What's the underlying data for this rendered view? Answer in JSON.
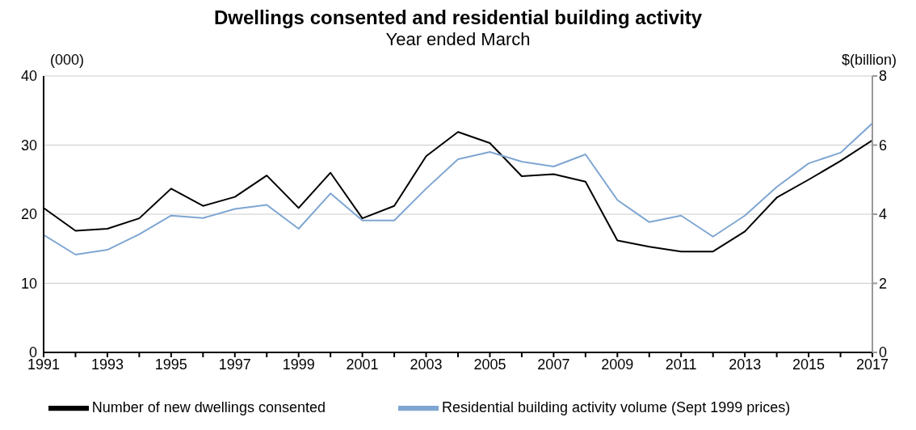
{
  "chart_data": {
    "type": "line",
    "title": "Dwellings consented and residential building activity",
    "subtitle": "Year ended March",
    "ylabel": "(000)",
    "y2label": "$(billion)",
    "x": [
      1991,
      1992,
      1993,
      1994,
      1995,
      1996,
      1997,
      1998,
      1999,
      2000,
      2001,
      2002,
      2003,
      2004,
      2005,
      2006,
      2007,
      2008,
      2009,
      2010,
      2011,
      2012,
      2013,
      2014,
      2015,
      2016,
      2017
    ],
    "series": [
      {
        "name": "Number of new dwellings consented",
        "color": "#000000",
        "values": [
          20.9,
          17.6,
          17.9,
          19.4,
          23.7,
          21.2,
          22.5,
          25.6,
          20.9,
          26.0,
          19.4,
          21.2,
          28.4,
          31.9,
          30.3,
          25.5,
          25.8,
          24.7,
          16.2,
          15.3,
          14.6,
          14.6,
          17.5,
          22.4,
          25.0,
          27.7,
          30.7
        ]
      },
      {
        "name": "Residential building activity volume (Sept 1999 prices)",
        "color": "#7fa6d2",
        "axis": "y2",
        "values": [
          3.4,
          2.83,
          2.97,
          3.42,
          3.96,
          3.89,
          4.15,
          4.27,
          3.58,
          4.6,
          3.82,
          3.82,
          4.74,
          5.59,
          5.8,
          5.52,
          5.38,
          5.73,
          4.41,
          3.77,
          3.96,
          3.35,
          3.96,
          4.79,
          5.47,
          5.78,
          6.63
        ]
      }
    ],
    "xlim": [
      1991,
      2017
    ],
    "xticks": [
      1991,
      {
        "value": 1992,
        "label": null
      },
      1993,
      {
        "value": 1994,
        "label": null
      },
      1995,
      {
        "value": 1996,
        "label": null
      },
      1997,
      {
        "value": 1998,
        "label": null
      },
      1999,
      {
        "value": 2000,
        "label": null
      },
      2001,
      {
        "value": 2002,
        "label": null
      },
      2003,
      {
        "value": 2004,
        "label": null
      },
      2005,
      {
        "value": 2006,
        "label": null
      },
      2007,
      {
        "value": 2008,
        "label": null
      },
      2009,
      {
        "value": 2010,
        "label": null
      },
      2011,
      {
        "value": 2012,
        "label": null
      },
      2013,
      {
        "value": 2014,
        "label": null
      },
      2015,
      {
        "value": 2016,
        "label": null
      },
      2017
    ],
    "ylim": [
      0,
      40
    ],
    "yticks": [
      0,
      10,
      20,
      30,
      40
    ],
    "y2lim": [
      0,
      8
    ],
    "y2ticks": [
      0,
      2,
      4,
      6,
      8
    ],
    "grid": "y",
    "legend": "bottom",
    "line_style": "solid",
    "marker": "none"
  }
}
